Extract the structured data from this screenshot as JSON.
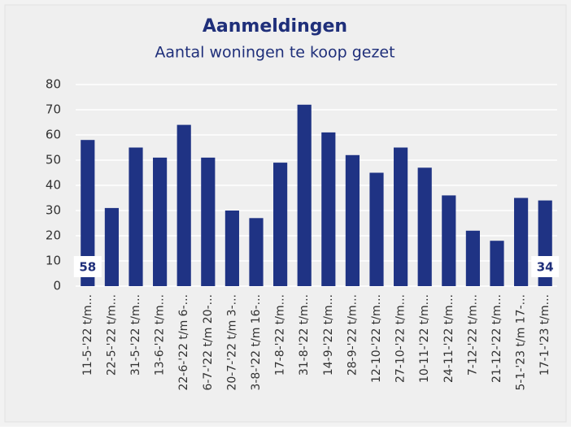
{
  "chart_data": {
    "type": "bar",
    "title": "Aanmeldingen",
    "subtitle": "Aantal woningen te koop gezet",
    "categories": [
      "11-5-'22 t/m...",
      "22-5-'22 t/m...",
      "31-5-'22 t/m...",
      "13-6-'22 t/m...",
      "22-6-'22 t/m 6-...",
      "6-7-'22 t/m 20-...",
      "20-7-'22 t/m 3-...",
      "3-8-'22 t/m 16-...",
      "17-8-'22 t/m...",
      "31-8-'22 t/m...",
      "14-9-'22 t/m...",
      "28-9-'22 t/m...",
      "12-10-'22 t/m...",
      "27-10-'22 t/m...",
      "10-11-'22 t/m...",
      "24-11-'22 t/m...",
      "7-12-'22 t/m...",
      "21-12-'22 t/m...",
      "5-1-'23 t/m 17-...",
      "17-1-'23 t/m..."
    ],
    "values": [
      58,
      31,
      55,
      51,
      64,
      51,
      30,
      27,
      49,
      72,
      61,
      52,
      45,
      55,
      47,
      36,
      22,
      18,
      35,
      34
    ],
    "value_labels": [
      "58",
      null,
      null,
      null,
      null,
      null,
      null,
      null,
      null,
      null,
      null,
      null,
      null,
      null,
      null,
      null,
      null,
      null,
      null,
      "34"
    ],
    "color": "#1f3384",
    "ylim": [
      0,
      80
    ],
    "yticks": [
      0,
      10,
      20,
      30,
      40,
      50,
      60,
      70,
      80
    ],
    "grid": true
  }
}
